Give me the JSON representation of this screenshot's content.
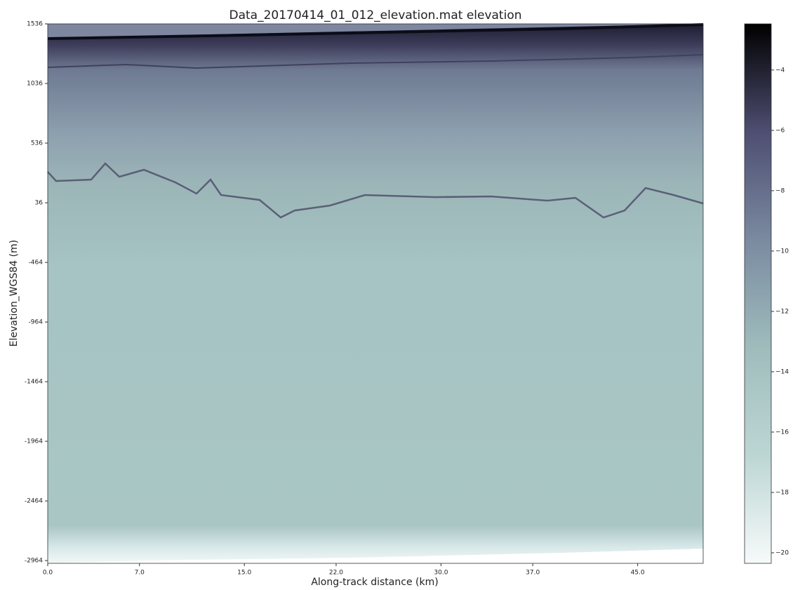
{
  "chart_data": {
    "type": "image",
    "title": "Data_20170414_01_012_elevation.mat elevation",
    "xlabel": "Along-track distance (km)",
    "ylabel": "Elevation_WGS84 (m)",
    "xlim": [
      0,
      50
    ],
    "xticks": [
      {
        "value": 0,
        "label": "0.0"
      },
      {
        "value": 7,
        "label": "7.0"
      },
      {
        "value": 15,
        "label": "15.0"
      },
      {
        "value": 22,
        "label": "22.0"
      },
      {
        "value": 30,
        "label": "30.0"
      },
      {
        "value": 37,
        "label": "37.0"
      },
      {
        "value": 45,
        "label": "45.0"
      }
    ],
    "ylim": [
      -2987,
      1536
    ],
    "yticks": [
      1536,
      1036,
      536,
      36,
      -464,
      -964,
      -1464,
      -1964,
      -2464,
      -2964
    ],
    "clim": [
      -20.35,
      -2.47
    ],
    "cticks": [
      {
        "value": -4,
        "label": "−4"
      },
      {
        "value": -6,
        "label": "−6"
      },
      {
        "value": -8,
        "label": "−8"
      },
      {
        "value": -10,
        "label": "−10"
      },
      {
        "value": -12,
        "label": "−12"
      },
      {
        "value": -14,
        "label": "−14"
      },
      {
        "value": -16,
        "label": "−16"
      },
      {
        "value": -18,
        "label": "−18"
      },
      {
        "value": -20,
        "label": "−20"
      }
    ]
  }
}
